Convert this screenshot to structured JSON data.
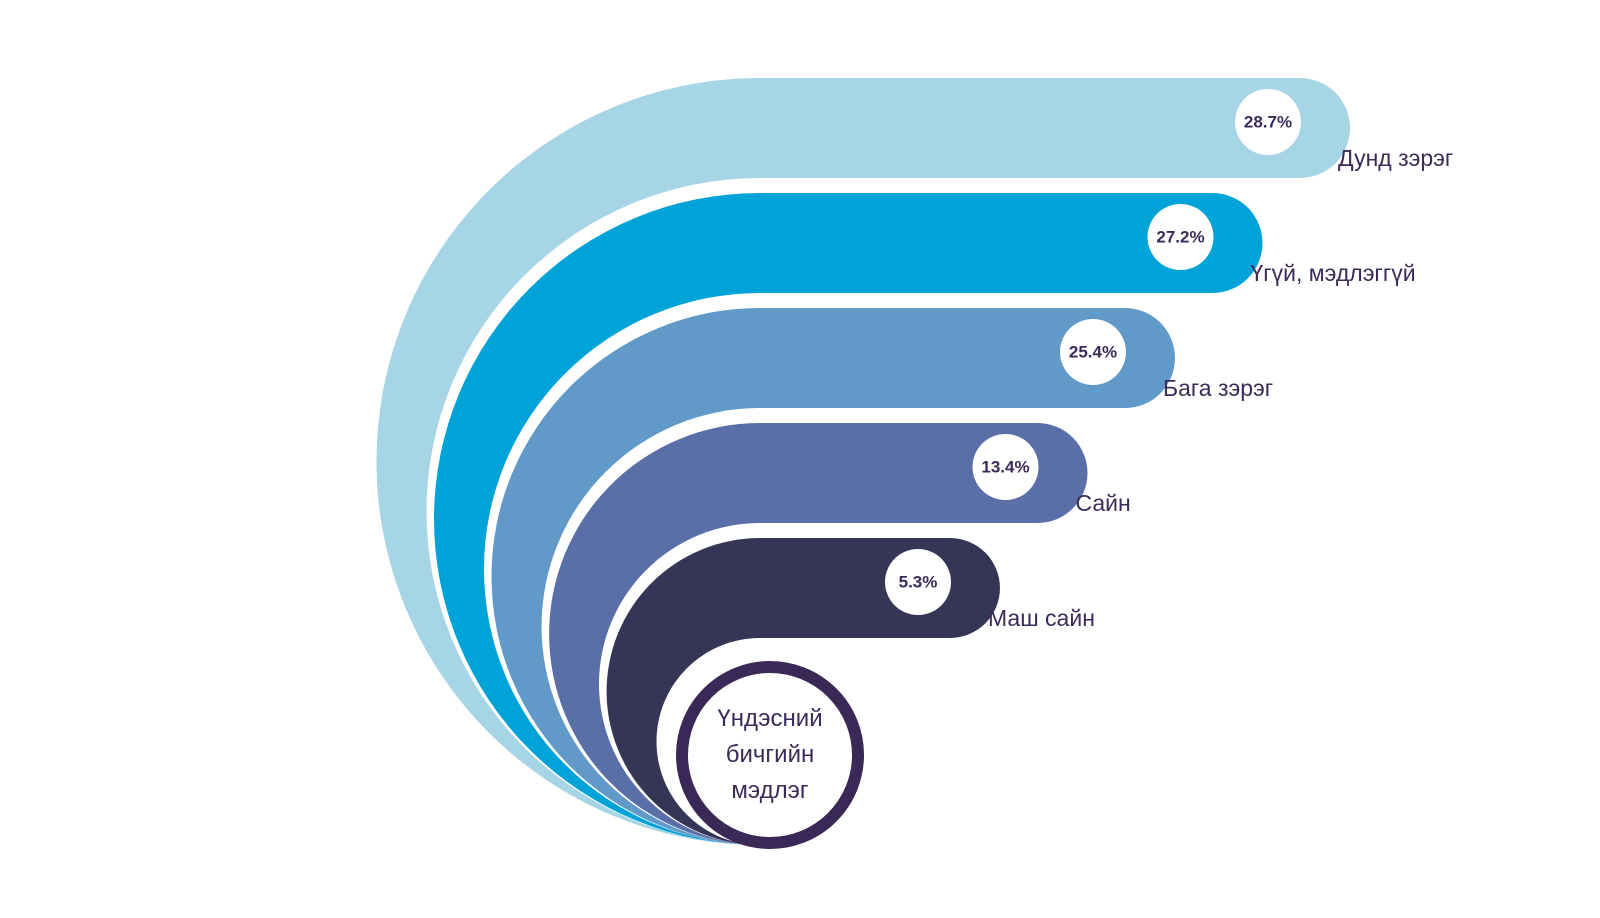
{
  "chart_data": {
    "type": "radial-bar",
    "title": "Үндэсний бичгийн мэдлэг",
    "categories": [
      "Дунд зэрэг",
      "Үгүй, мэдлэггүй",
      "Бага зэрэг",
      "Сайн",
      "Маш сайн"
    ],
    "values": [
      28.7,
      27.2,
      25.4,
      13.4,
      5.3
    ],
    "value_labels": [
      "28.7%",
      "27.2%",
      "25.4%",
      "13.4%",
      "5.3%"
    ],
    "colors": [
      "#a6d5e6",
      "#00a3d8",
      "#6199c8",
      "#5a6ea8",
      "#353556"
    ]
  }
}
